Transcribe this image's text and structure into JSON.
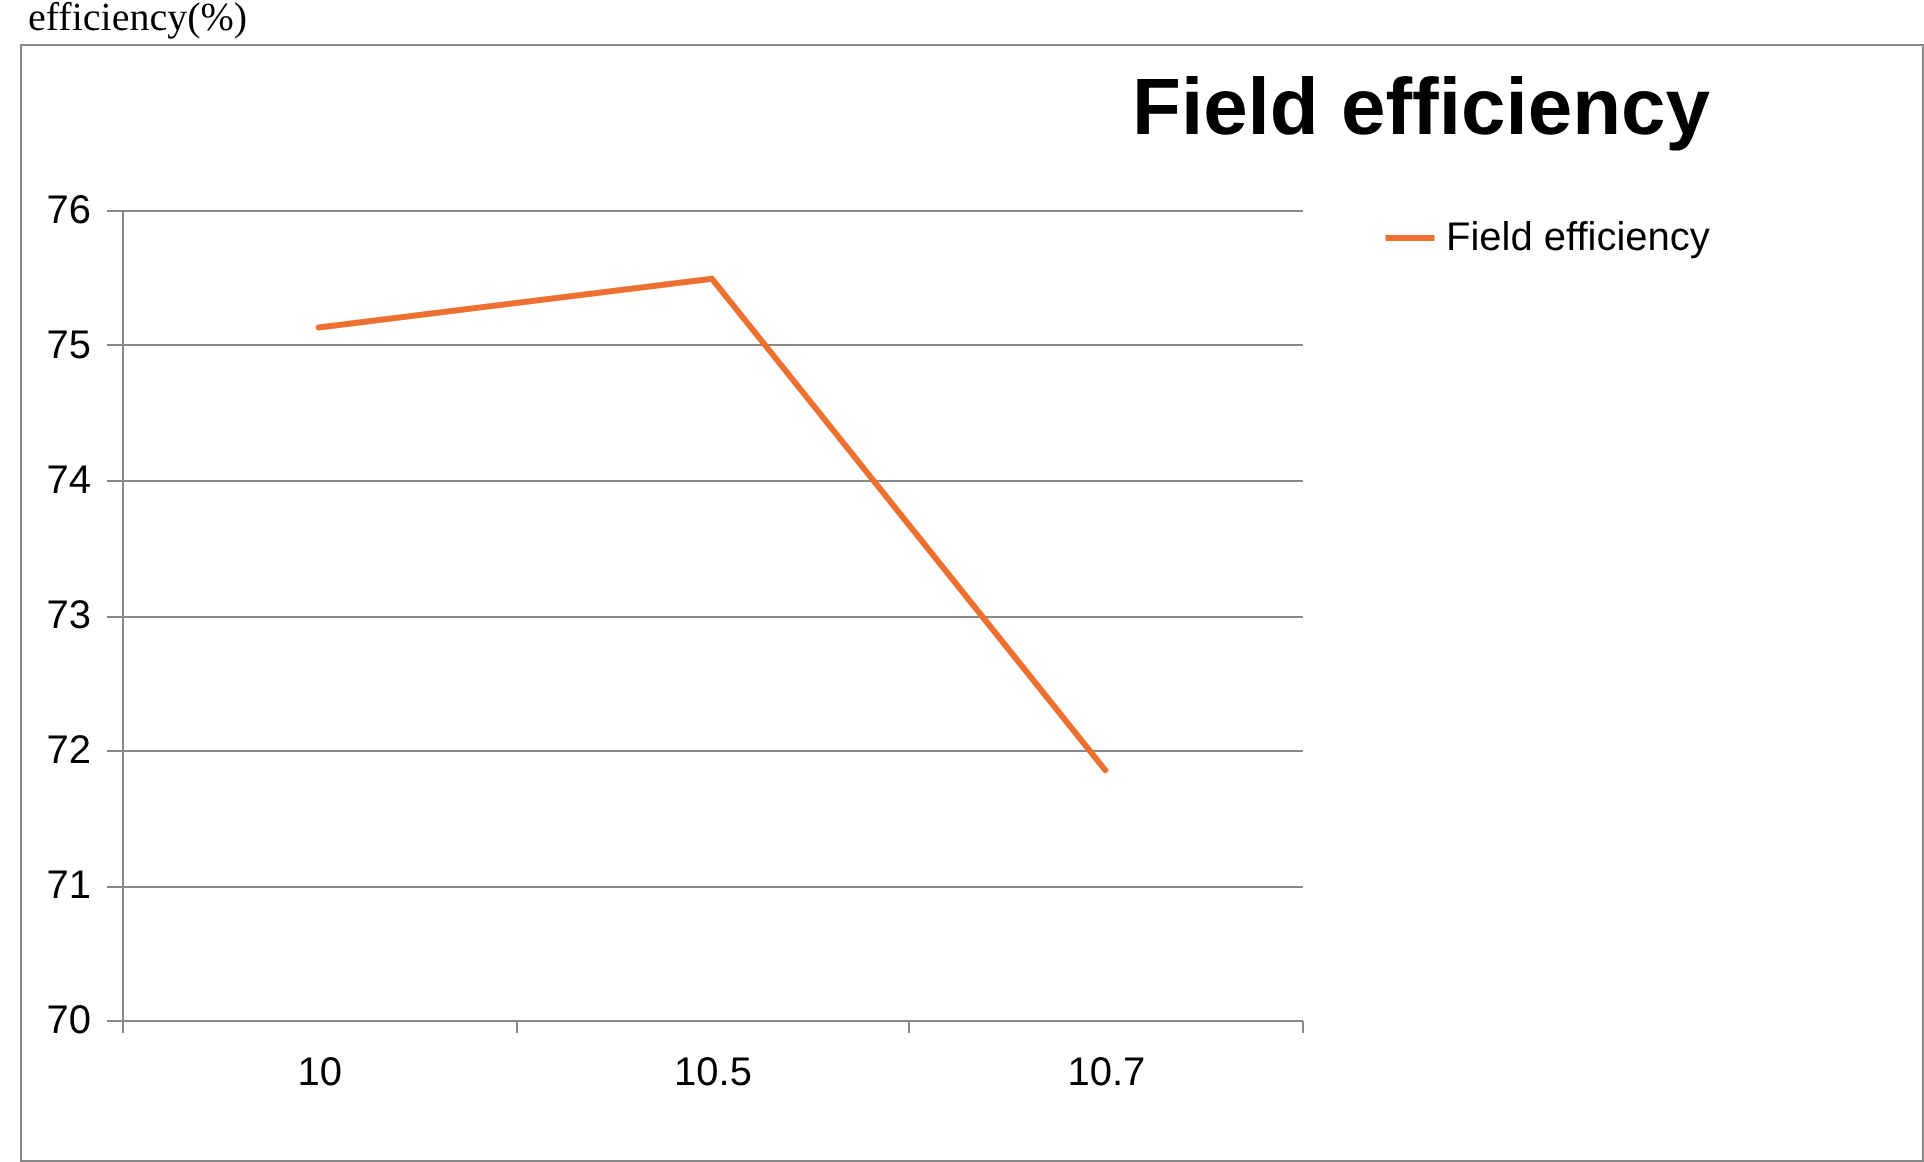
{
  "chart_data": {
    "type": "line",
    "title": "Field efficiency",
    "annotations": [
      "efficiency(%)"
    ],
    "categories": [
      "10",
      "10.5",
      "10.7"
    ],
    "series": [
      {
        "name": "Field efficiency",
        "color": "#ed7031",
        "values": [
          75.13,
          75.49,
          71.85
        ]
      }
    ],
    "ylim": [
      70,
      76
    ],
    "yticks": [
      70,
      71,
      72,
      73,
      74,
      75,
      76
    ],
    "grid": "y",
    "legend": "right",
    "marker": "none",
    "line_style": "solid"
  }
}
